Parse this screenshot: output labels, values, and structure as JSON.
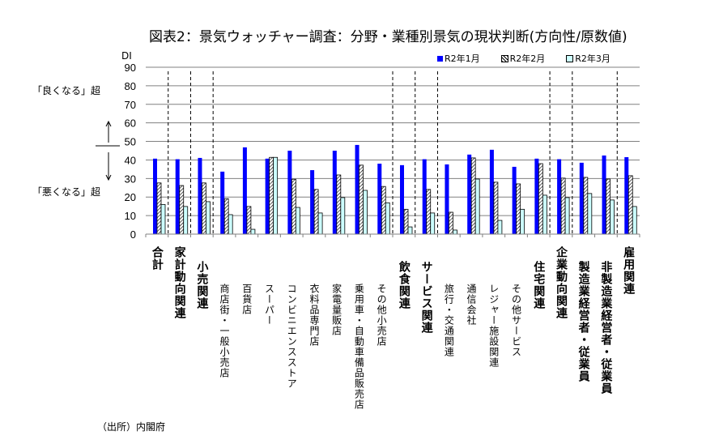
{
  "chart_data": {
    "type": "bar",
    "title": "図表2：景気ウォッチャー調査：分野・業種別景気の現状判断(方向性/原数値)",
    "ylabel": "DI",
    "ylim": [
      0,
      90
    ],
    "yticks": [
      0,
      10,
      20,
      30,
      40,
      50,
      60,
      70,
      80,
      90
    ],
    "grid": true,
    "legend_position": "top-right",
    "categories": [
      {
        "label": "合計",
        "level": 0
      },
      {
        "label": "家計動向関連",
        "level": 0
      },
      {
        "label": "小売関連",
        "level": 1
      },
      {
        "label": "商店街・一般小売店",
        "level": 2
      },
      {
        "label": "百貨店",
        "level": 2
      },
      {
        "label": "スーパー",
        "level": 2
      },
      {
        "label": "コンビニエンスストア",
        "level": 2
      },
      {
        "label": "衣料品専門店",
        "level": 2
      },
      {
        "label": "家電量販店",
        "level": 2
      },
      {
        "label": "乗用車・自動車備品販売店",
        "level": 2
      },
      {
        "label": "その他小売店",
        "level": 2
      },
      {
        "label": "飲食関連",
        "level": 1
      },
      {
        "label": "サービス関連",
        "level": 1
      },
      {
        "label": "旅行・交通関連",
        "level": 2
      },
      {
        "label": "通信会社",
        "level": 2
      },
      {
        "label": "レジャー施設関連",
        "level": 2
      },
      {
        "label": "その他サービス",
        "level": 2
      },
      {
        "label": "住宅関連",
        "level": 1
      },
      {
        "label": "企業動向関連",
        "level": 0
      },
      {
        "label": "製造業経営者・従業員",
        "level": 1
      },
      {
        "label": "非製造業経営者・従業員",
        "level": 1
      },
      {
        "label": "雇用関連",
        "level": 0
      }
    ],
    "group_separators_after": [
      0,
      1,
      2,
      10,
      11,
      12,
      17,
      18,
      20
    ],
    "series": [
      {
        "name": "R2年1月",
        "color": "#0000ff",
        "pattern": "solid",
        "values": [
          40.7,
          40.4,
          41.1,
          33.7,
          46.8,
          40.7,
          45.0,
          34.5,
          45.0,
          48.1,
          38.0,
          37.2,
          40.4,
          37.6,
          42.9,
          45.5,
          36.3,
          40.7,
          40.4,
          38.5,
          42.4,
          41.5
        ]
      },
      {
        "name": "R2年2月",
        "color": "#ffffff",
        "pattern": "hatched",
        "values": [
          27.6,
          26.2,
          27.6,
          19.1,
          14.9,
          41.4,
          29.6,
          24.1,
          31.9,
          37.2,
          25.7,
          13.4,
          24.1,
          11.8,
          41.1,
          28.0,
          27.1,
          38.0,
          30.2,
          30.6,
          29.7,
          31.5
        ]
      },
      {
        "name": "R2年3月",
        "color": "#ccffff",
        "pattern": "solid",
        "values": [
          16.0,
          14.9,
          17.5,
          10.5,
          2.6,
          41.4,
          14.4,
          11.4,
          19.7,
          23.6,
          16.9,
          3.9,
          11.4,
          2.2,
          29.7,
          7.4,
          13.4,
          21.0,
          19.7,
          21.9,
          18.4,
          14.9
        ]
      }
    ]
  },
  "annotations": {
    "better": "「良くなる」超",
    "worse": "「悪くなる」超",
    "source": "（出所）内閣府"
  }
}
